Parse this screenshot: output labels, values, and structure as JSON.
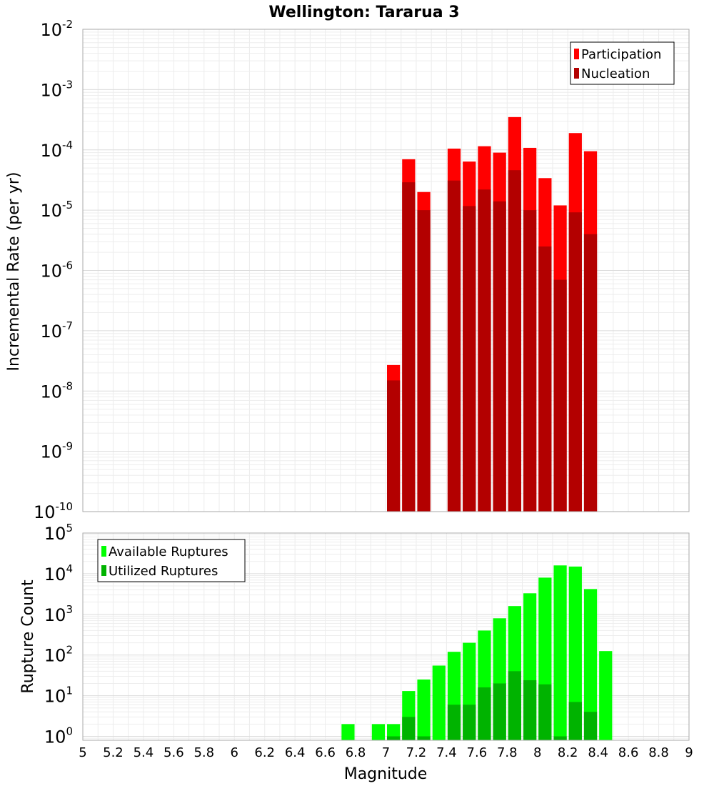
{
  "title": "Wellington: Tararua 3",
  "xlabel": "Magnitude",
  "chart_data": [
    {
      "type": "bar",
      "ylabel": "Incremental Rate (per yr)",
      "yscale": "log",
      "ylim": [
        1e-10,
        0.01
      ],
      "xlim": [
        5,
        9
      ],
      "bin_width": 0.1,
      "legend_position": "top-right",
      "series": [
        {
          "name": "Participation",
          "color": "#ff0000",
          "x": [
            7.05,
            7.15,
            7.25,
            7.45,
            7.55,
            7.65,
            7.75,
            7.85,
            7.95,
            8.05,
            8.15,
            8.25,
            8.35
          ],
          "values": [
            2.7e-08,
            7e-05,
            2e-05,
            0.000105,
            6.4e-05,
            0.000115,
            9e-05,
            0.00035,
            0.000108,
            3.4e-05,
            1.2e-05,
            0.00019,
            9.5e-05
          ]
        },
        {
          "name": "Nucleation",
          "color": "#b30000",
          "x": [
            7.05,
            7.15,
            7.25,
            7.45,
            7.55,
            7.65,
            7.75,
            7.85,
            7.95,
            8.05,
            8.15,
            8.25,
            8.35
          ],
          "values": [
            1.5e-08,
            2.9e-05,
            1e-05,
            3.1e-05,
            1.17e-05,
            2.2e-05,
            1.4e-05,
            4.6e-05,
            1e-05,
            2.5e-06,
            7e-07,
            9.2e-06,
            4e-06
          ]
        }
      ]
    },
    {
      "type": "bar",
      "ylabel": "Rupture Count",
      "yscale": "log",
      "ylim": [
        0.8,
        100000.0
      ],
      "xlim": [
        5,
        9
      ],
      "bin_width": 0.1,
      "legend_position": "top-left",
      "series": [
        {
          "name": "Available Ruptures",
          "color": "#00ff00",
          "x": [
            6.75,
            6.95,
            7.05,
            7.15,
            7.25,
            7.35,
            7.45,
            7.55,
            7.65,
            7.75,
            7.85,
            7.95,
            8.05,
            8.15,
            8.25,
            8.35,
            8.45
          ],
          "values": [
            2,
            2,
            2,
            13,
            25,
            55,
            120,
            200,
            400,
            800,
            1600,
            3300,
            8000,
            16000,
            15000,
            4200,
            125
          ]
        },
        {
          "name": "Utilized Ruptures",
          "color": "#00b300",
          "x": [
            7.05,
            7.15,
            7.25,
            7.45,
            7.55,
            7.65,
            7.75,
            7.85,
            7.95,
            8.05,
            8.15,
            8.25,
            8.35
          ],
          "values": [
            1,
            3,
            1,
            6,
            6,
            16,
            20,
            40,
            24,
            19,
            1,
            7,
            4
          ]
        }
      ]
    }
  ],
  "xticks": [
    "5",
    "5.2",
    "5.4",
    "5.6",
    "5.8",
    "6",
    "6.2",
    "6.4",
    "6.6",
    "6.8",
    "7",
    "7.2",
    "7.4",
    "7.6",
    "7.8",
    "8",
    "8.2",
    "8.4",
    "8.6",
    "8.8",
    "9"
  ],
  "top_yticks": [
    "-10",
    "-9",
    "-8",
    "-7",
    "-6",
    "-5",
    "-4",
    "-3",
    "-2"
  ],
  "bottom_yticks": [
    "0",
    "1",
    "2",
    "3",
    "4",
    "5"
  ],
  "ytick_base": "10"
}
